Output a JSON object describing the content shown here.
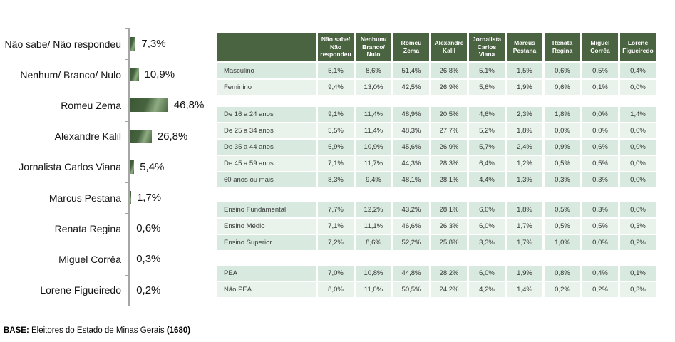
{
  "footer": {
    "prefix": "BASE:",
    "text": " Eleitores do Estado de Minas Gerais ",
    "bold_suffix": "(1680)"
  },
  "colors": {
    "header_green": "#4a6341",
    "bar_gradient_dark": "#3c5733",
    "bar_gradient_light": "#8fab83",
    "row_dark": "#d8eae0",
    "row_light": "#e9f3ec",
    "axis_gray": "#a6a6a6"
  },
  "chart_data": [
    {
      "type": "bar",
      "orientation": "horizontal",
      "title": "",
      "xlabel": "",
      "ylabel": "",
      "xlim": [
        0,
        50
      ],
      "unit": "%",
      "grid": false,
      "categories": [
        "Não sabe/ Não respondeu",
        "Nenhum/ Branco/ Nulo",
        "Romeu Zema",
        "Alexandre Kalil",
        "Jornalista Carlos Viana",
        "Marcus Pestana",
        "Renata Regina",
        "Miguel Corrêa",
        "Lorene Figueiredo"
      ],
      "values": [
        7.3,
        10.9,
        46.8,
        26.8,
        5.4,
        1.7,
        0.6,
        0.3,
        0.2
      ],
      "labels": [
        "7,3%",
        "10,9%",
        "46,8%",
        "26,8%",
        "5,4%",
        "1,7%",
        "0,6%",
        "0,3%",
        "0,2%"
      ]
    },
    {
      "type": "table",
      "columns": [
        "Não sabe/ Não respondeu",
        "Nenhum/ Branco/ Nulo",
        "Romeu Zema",
        "Alexandre Kalil",
        "Jornalista Carlos Viana",
        "Marcus Pestana",
        "Renata Regina",
        "Miguel Corrêa",
        "Lorene Figueiredo"
      ],
      "sections": [
        {
          "name": "sexo",
          "rows": [
            {
              "label": "Masculino",
              "values": [
                "5,1%",
                "8,6%",
                "51,4%",
                "26,8%",
                "5,1%",
                "1,5%",
                "0,6%",
                "0,5%",
                "0,4%"
              ]
            },
            {
              "label": "Feminino",
              "values": [
                "9,4%",
                "13,0%",
                "42,5%",
                "26,9%",
                "5,6%",
                "1,9%",
                "0,6%",
                "0,1%",
                "0,0%"
              ]
            }
          ]
        },
        {
          "name": "idade",
          "rows": [
            {
              "label": "De 16 a 24 anos",
              "values": [
                "9,1%",
                "11,4%",
                "48,9%",
                "20,5%",
                "4,6%",
                "2,3%",
                "1,8%",
                "0,0%",
                "1,4%"
              ]
            },
            {
              "label": "De 25 a 34 anos",
              "values": [
                "5,5%",
                "11,4%",
                "48,3%",
                "27,7%",
                "5,2%",
                "1,8%",
                "0,0%",
                "0,0%",
                "0,0%"
              ]
            },
            {
              "label": "De 35 a 44 anos",
              "values": [
                "6,9%",
                "10,9%",
                "45,6%",
                "26,9%",
                "5,7%",
                "2,4%",
                "0,9%",
                "0,6%",
                "0,0%"
              ]
            },
            {
              "label": "De 45 a 59 anos",
              "values": [
                "7,1%",
                "11,7%",
                "44,3%",
                "28,3%",
                "6,4%",
                "1,2%",
                "0,5%",
                "0,5%",
                "0,0%"
              ]
            },
            {
              "label": "60 anos ou mais",
              "values": [
                "8,3%",
                "9,4%",
                "48,1%",
                "28,1%",
                "4,4%",
                "1,3%",
                "0,3%",
                "0,3%",
                "0,0%"
              ]
            }
          ]
        },
        {
          "name": "escolaridade",
          "rows": [
            {
              "label": "Ensino Fundamental",
              "values": [
                "7,7%",
                "12,2%",
                "43,2%",
                "28,1%",
                "6,0%",
                "1,8%",
                "0,5%",
                "0,3%",
                "0,0%"
              ]
            },
            {
              "label": "Ensino Médio",
              "values": [
                "7,1%",
                "11,1%",
                "46,6%",
                "26,3%",
                "6,0%",
                "1,7%",
                "0,5%",
                "0,5%",
                "0,3%"
              ]
            },
            {
              "label": "Ensino Superior",
              "values": [
                "7,2%",
                "8,6%",
                "52,2%",
                "25,8%",
                "3,3%",
                "1,7%",
                "1,0%",
                "0,0%",
                "0,2%"
              ]
            }
          ]
        },
        {
          "name": "ocupacao",
          "rows": [
            {
              "label": "PEA",
              "values": [
                "7,0%",
                "10,8%",
                "44,8%",
                "28,2%",
                "6,0%",
                "1,9%",
                "0,8%",
                "0,4%",
                "0,1%"
              ]
            },
            {
              "label": "Não PEA",
              "values": [
                "8,0%",
                "11,0%",
                "50,5%",
                "24,2%",
                "4,2%",
                "1,4%",
                "0,2%",
                "0,2%",
                "0,3%"
              ]
            }
          ]
        }
      ]
    }
  ]
}
